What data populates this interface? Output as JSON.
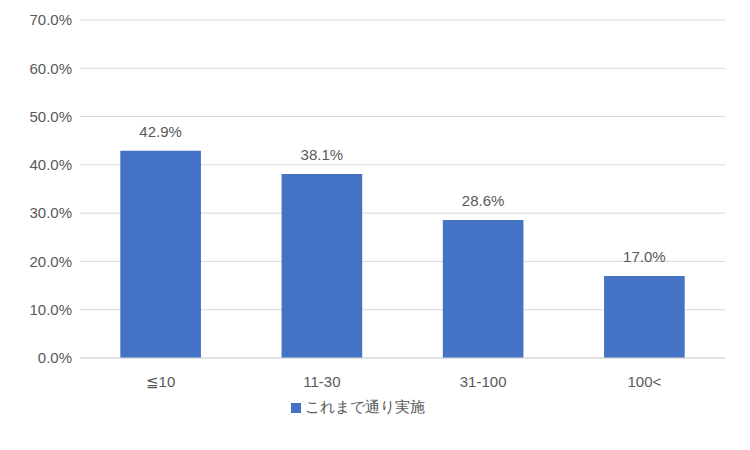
{
  "chart_data": {
    "type": "bar",
    "categories": [
      "≦10",
      "11-30",
      "31-100",
      "100<"
    ],
    "series": [
      {
        "name": "これまで通り実施",
        "color": "#4472c4",
        "values": [
          42.9,
          38.1,
          28.6,
          17.0
        ],
        "value_labels": [
          "42.9%",
          "38.1%",
          "28.6%",
          "17.0%"
        ]
      }
    ],
    "ylim": [
      0,
      70
    ],
    "yticks": [
      {
        "value": 0,
        "label": "0.0%"
      },
      {
        "value": 10,
        "label": "10.0%"
      },
      {
        "value": 20,
        "label": "20.0%"
      },
      {
        "value": 30,
        "label": "30.0%"
      },
      {
        "value": 40,
        "label": "40.0%"
      },
      {
        "value": 50,
        "label": "50.0%"
      },
      {
        "value": 60,
        "label": "60.0%"
      },
      {
        "value": 70,
        "label": "70.0%"
      }
    ],
    "grid": true,
    "legend": "bottom",
    "data_labels": true
  }
}
